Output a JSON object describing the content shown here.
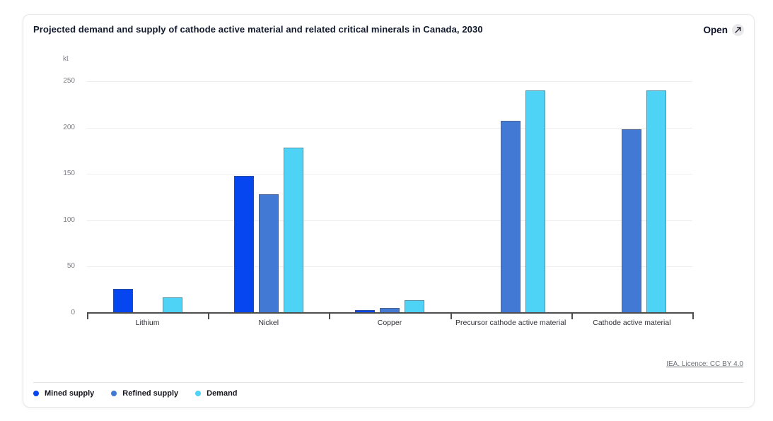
{
  "header": {
    "title": "Projected demand and supply of cathode active material and related critical minerals in Canada, 2030",
    "open_label": "Open",
    "open_icon": "external-link-icon"
  },
  "footer": {
    "licence": "IEA. Licence: CC BY 4.0"
  },
  "chart_data": {
    "type": "bar",
    "title": "Projected demand and supply of cathode active material and related critical minerals in Canada, 2030",
    "unit": "kt",
    "xlabel": "",
    "ylabel": "kt",
    "categories": [
      "Lithium",
      "Nickel",
      "Copper",
      "Precursor cathode active material",
      "Cathode active material"
    ],
    "series": [
      {
        "name": "Mined supply",
        "color": "#0646f0",
        "values": [
          26,
          148,
          3,
          null,
          null
        ]
      },
      {
        "name": "Refined supply",
        "color": "#4279d4",
        "values": [
          null,
          128,
          5,
          207,
          198
        ]
      },
      {
        "name": "Demand",
        "color": "#4ed3f7",
        "values": [
          17,
          178,
          14,
          240,
          240
        ]
      }
    ],
    "ylim": [
      0,
      250
    ],
    "yticks": [
      0,
      50,
      100,
      150,
      200,
      250
    ],
    "grid": true,
    "legend_position": "bottom",
    "axis_color": "#4d4d4d",
    "grid_color": "#ededed"
  }
}
